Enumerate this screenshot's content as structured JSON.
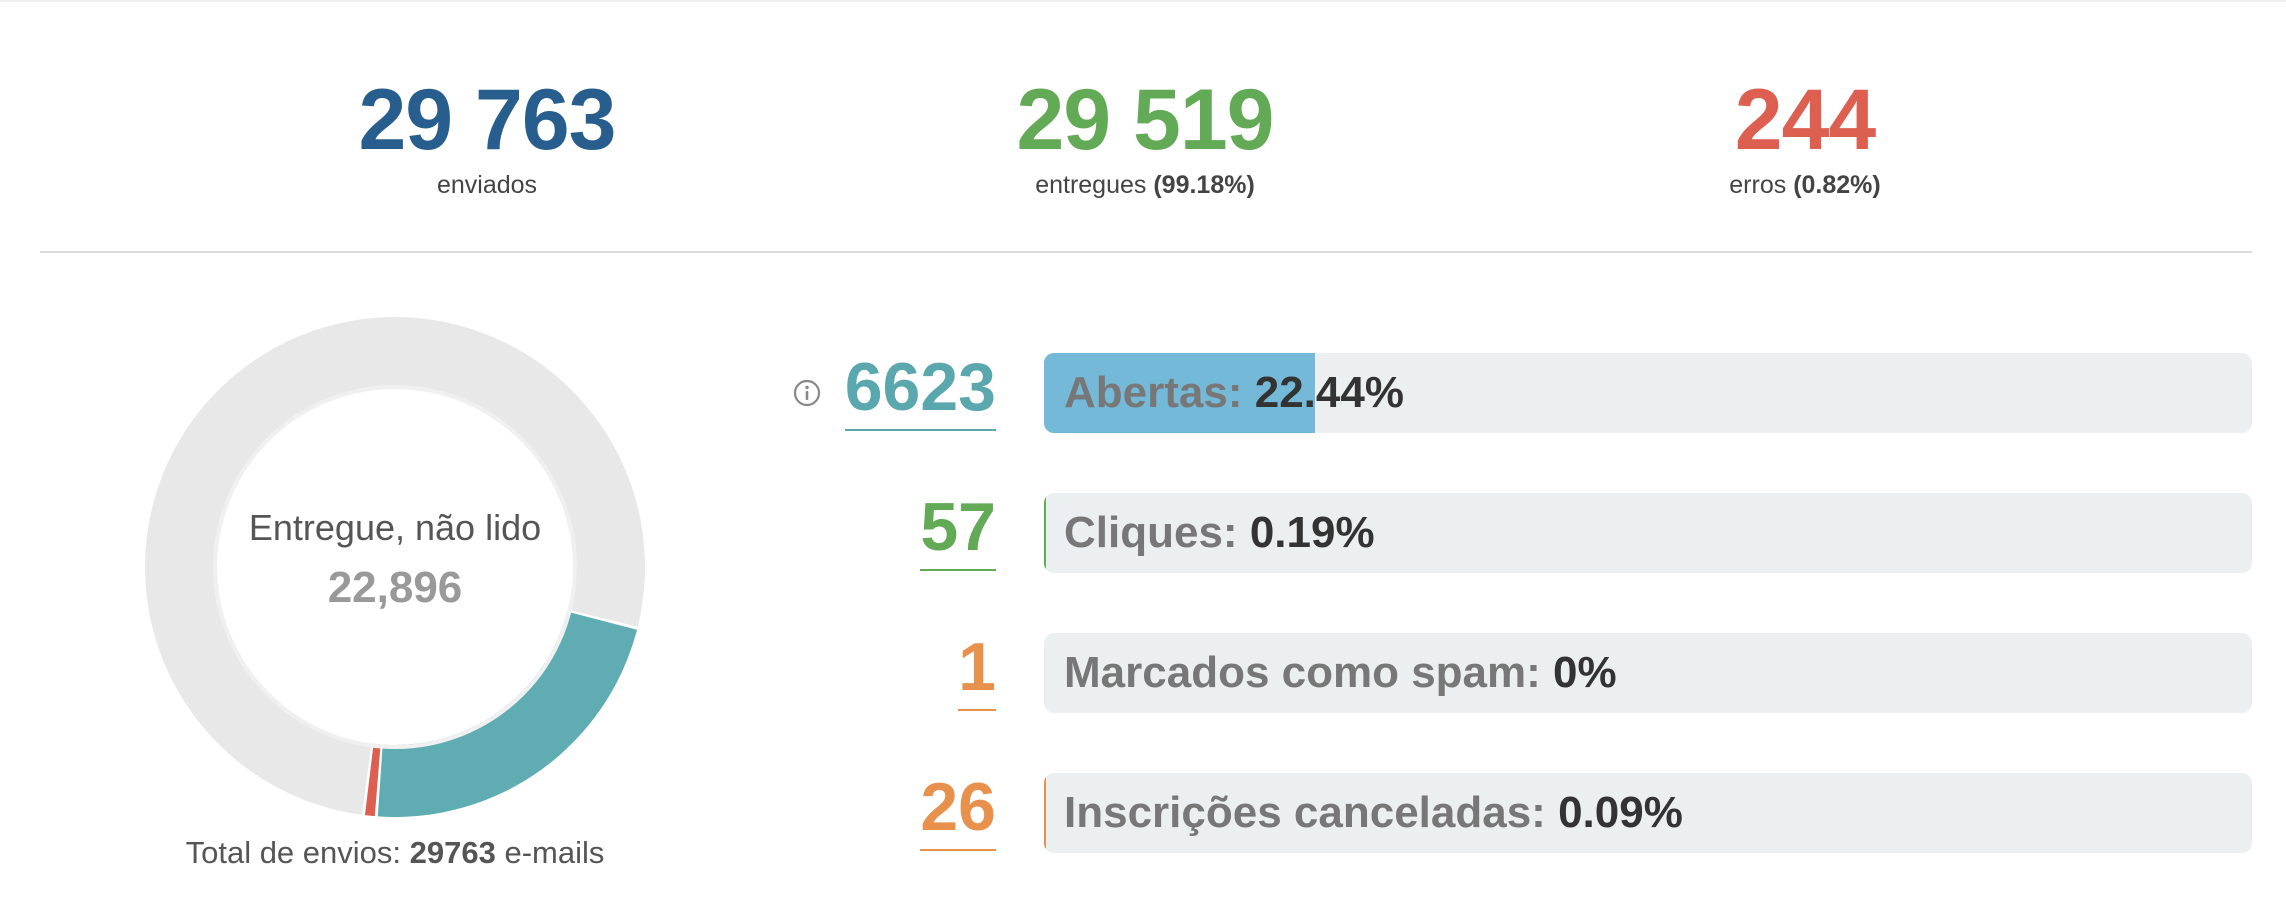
{
  "summary": {
    "sent": {
      "value": "29 763",
      "label": "enviados",
      "color": "#285e8e"
    },
    "delivered": {
      "value": "29 519",
      "label": "entregues",
      "pct": "(99.18%)",
      "color": "#62aa55"
    },
    "errors": {
      "value": "244",
      "label": "erros",
      "pct": "(0.82%)",
      "color": "#dd5f50"
    }
  },
  "donut": {
    "center_label": "Entregue, não lido",
    "center_value": "22,896",
    "segments": [
      {
        "name": "Entregue, não lido",
        "value": 22896,
        "color": "#e8e8e8"
      },
      {
        "name": "Abertas",
        "value": 6623,
        "color": "#5fadb3"
      },
      {
        "name": "Erros",
        "value": 244,
        "color": "#dd5f50"
      }
    ],
    "total_prefix": "Total de envios:",
    "total_value": "29763",
    "total_suffix": "e-mails"
  },
  "metrics": [
    {
      "count": "6623",
      "label": "Abertas:",
      "pct": "22.44%",
      "fill": 0.2244,
      "count_color": "#5aa7ae",
      "fill_color": "#74b9d8"
    },
    {
      "count": "57",
      "label": "Cliques:",
      "pct": "0.19%",
      "fill": 0.0019,
      "count_color": "#62aa55",
      "fill_color": "#62aa55"
    },
    {
      "count": "1",
      "label": "Marcados como spam:",
      "pct": "0%",
      "fill": 0,
      "count_color": "#e8914d",
      "fill_color": "#e8914d"
    },
    {
      "count": "26",
      "label": "Inscrições canceladas:",
      "pct": "0.09%",
      "fill": 0.0009,
      "count_color": "#e8914d",
      "fill_color": "#e8914d"
    }
  ],
  "icons": {
    "info": "info-circle-icon"
  }
}
